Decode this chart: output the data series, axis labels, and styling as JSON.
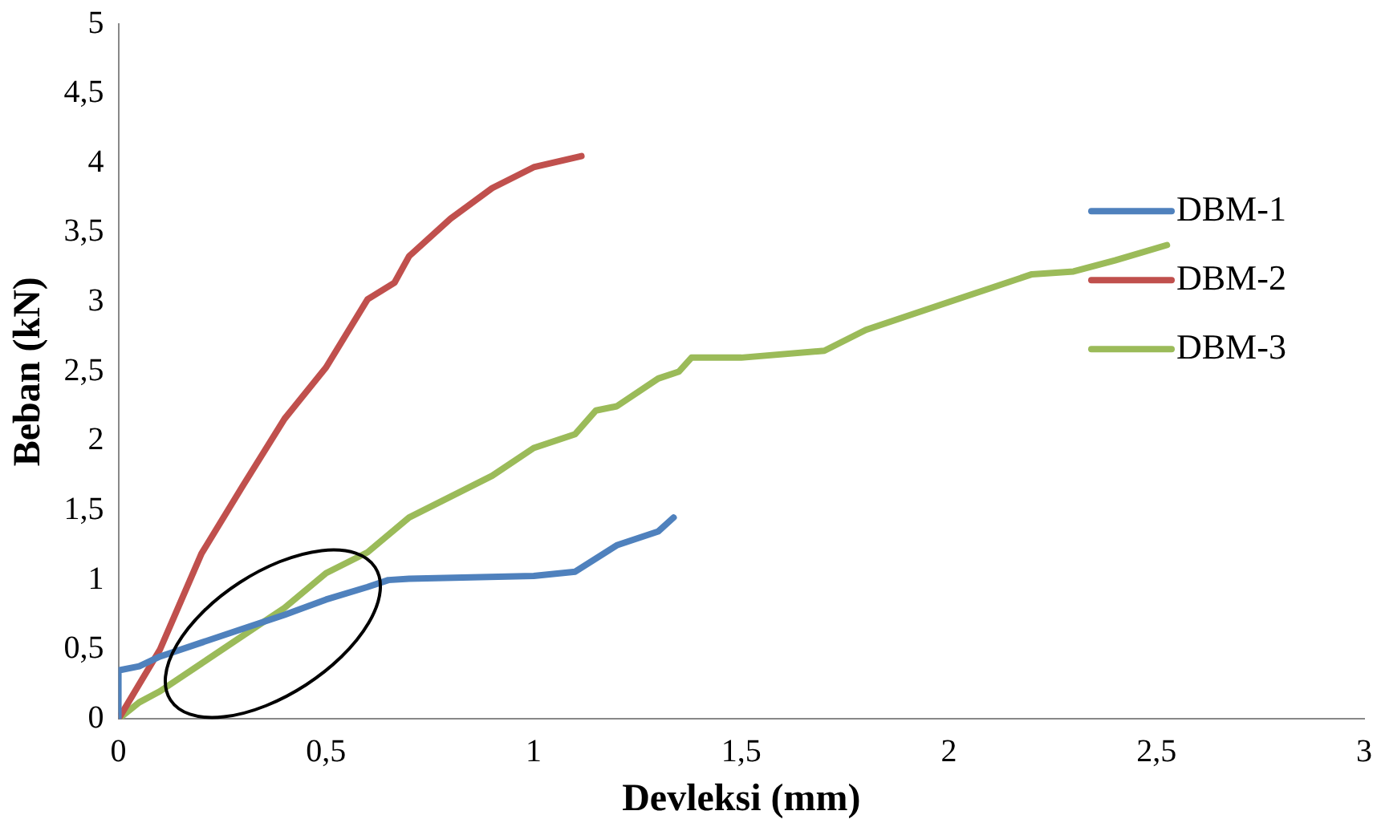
{
  "chart_data": {
    "type": "line",
    "xlabel": "Devleksi (mm)",
    "ylabel": "Beban (kN)",
    "xlim": [
      0,
      3
    ],
    "xticks": [
      0,
      {
        "value": 0.5,
        "label": "0,5"
      },
      1,
      {
        "value": 1.5,
        "label": "1,5"
      },
      2,
      {
        "value": 2.5,
        "label": "2,5"
      },
      3
    ],
    "ylim": [
      0,
      5
    ],
    "yticks": [
      0,
      {
        "value": 0.5,
        "label": "0,5"
      },
      1,
      {
        "value": 1.5,
        "label": "1,5"
      },
      2,
      {
        "value": 2.5,
        "label": "2,5"
      },
      3,
      {
        "value": 3.5,
        "label": "3,5"
      },
      4,
      {
        "value": 4.5,
        "label": "4,5"
      },
      5
    ],
    "grid": false,
    "legend": "right",
    "marker": "none",
    "line_style": "solid",
    "series": [
      {
        "name": "DBM-1",
        "color": "#4f81bd",
        "x": [
          0,
          0,
          0.05,
          0.1,
          0.2,
          0.3,
          0.4,
          0.5,
          0.6,
          0.65,
          0.7,
          1.0,
          1.1,
          1.2,
          1.3,
          1.337
        ],
        "values": [
          0,
          0.35,
          0.38,
          0.45,
          0.55,
          0.65,
          0.75,
          0.86,
          0.95,
          1.0,
          1.01,
          1.03,
          1.06,
          1.25,
          1.35,
          1.45
        ]
      },
      {
        "name": "DBM-2",
        "color": "#c0504d",
        "x": [
          0,
          0.1,
          0.2,
          0.3,
          0.4,
          0.5,
          0.6,
          0.665,
          0.7,
          0.8,
          0.9,
          1.0,
          1.115
        ],
        "values": [
          0,
          0.5,
          1.19,
          1.68,
          2.16,
          2.53,
          3.02,
          3.14,
          3.33,
          3.6,
          3.82,
          3.97,
          4.05
        ]
      },
      {
        "name": "DBM-3",
        "color": "#9bbb59",
        "x": [
          0,
          0.05,
          0.1,
          0.2,
          0.3,
          0.4,
          0.5,
          0.6,
          0.7,
          0.8,
          0.9,
          1.0,
          1.1,
          1.15,
          1.2,
          1.3,
          1.35,
          1.38,
          1.5,
          1.7,
          1.8,
          2.0,
          2.1,
          2.2,
          2.3,
          2.4,
          2.525
        ],
        "values": [
          0,
          0.12,
          0.2,
          0.4,
          0.6,
          0.8,
          1.05,
          1.2,
          1.45,
          1.6,
          1.75,
          1.95,
          2.05,
          2.22,
          2.25,
          2.45,
          2.5,
          2.6,
          2.6,
          2.65,
          2.8,
          3.0,
          3.1,
          3.2,
          3.22,
          3.3,
          3.41
        ]
      }
    ]
  }
}
